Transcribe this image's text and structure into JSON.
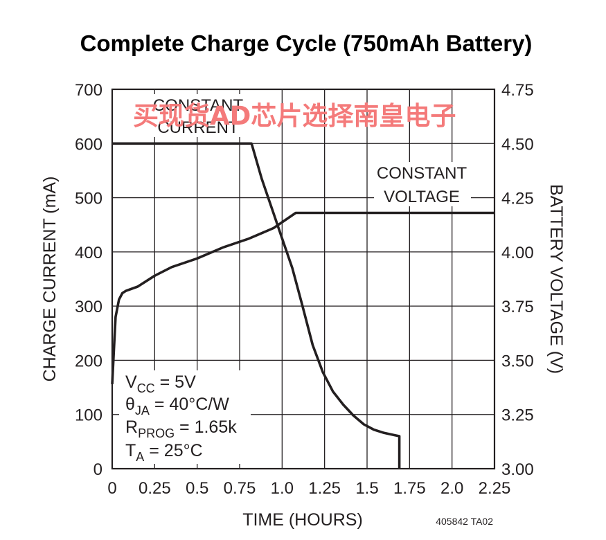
{
  "chart_data": {
    "type": "line",
    "title": "Complete Charge Cycle (750mAh Battery)",
    "xlabel": "TIME (HOURS)",
    "ylabel_left": "CHARGE CURRENT (mA)",
    "ylabel_right": "BATTERY VOLTAGE (V)",
    "xlim": [
      0,
      2.25
    ],
    "ylim_left": [
      0,
      700
    ],
    "ylim_right": [
      3.0,
      4.75
    ],
    "grid": true,
    "x_ticks": [
      "0",
      "0.25",
      "0.5",
      "0.75",
      "1.0",
      "1.25",
      "1.5",
      "1.75",
      "2.0",
      "2.25"
    ],
    "y_ticks_left": [
      "700",
      "600",
      "500",
      "400",
      "300",
      "200",
      "100",
      "0"
    ],
    "y_ticks_right": [
      "4.75",
      "4.50",
      "4.25",
      "4.00",
      "3.75",
      "3.50",
      "3.25",
      "3.00"
    ],
    "series": [
      {
        "axis": "left",
        "x": [
          0,
          0.82,
          0.88,
          0.94,
          1.0,
          1.06,
          1.12,
          1.18,
          1.24,
          1.3,
          1.36,
          1.42,
          1.48,
          1.54,
          1.6,
          1.66,
          1.69,
          1.69
        ],
        "values": [
          600,
          600,
          535,
          480,
          425,
          370,
          300,
          228,
          178,
          142,
          118,
          98,
          82,
          72,
          66,
          62,
          60,
          0
        ]
      },
      {
        "axis": "right",
        "x": [
          0,
          0.01,
          0.02,
          0.04,
          0.06,
          0.08,
          0.15,
          0.25,
          0.35,
          0.5,
          0.65,
          0.8,
          0.95,
          1.08,
          2.25
        ],
        "values": [
          3.39,
          3.55,
          3.7,
          3.78,
          3.81,
          3.82,
          3.84,
          3.89,
          3.93,
          3.97,
          4.02,
          4.06,
          4.11,
          4.18,
          4.18
        ]
      }
    ],
    "annotations": {
      "constant_current": [
        "CONSTANT",
        "CURRENT"
      ],
      "constant_voltage": [
        "CONSTANT",
        "VOLTAGE"
      ],
      "conditions": [
        "V",
        "CC",
        " = 5V",
        "θ",
        "JA",
        " = 40°C/W",
        "R",
        "PROG",
        " = 1.65k",
        "T",
        "A",
        " = 25°C"
      ],
      "figure_code": "405842  TA02"
    }
  },
  "watermark": "买现货AD芯片选择南皇电子",
  "colors": {
    "ink": "#231f20",
    "watermark": "#f47a7a"
  }
}
